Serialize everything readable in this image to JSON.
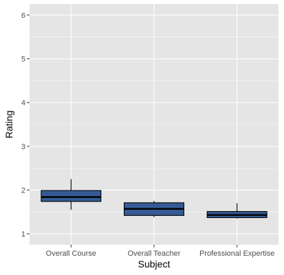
{
  "chart_data": {
    "type": "box",
    "xlabel": "Subject",
    "ylabel": "Rating",
    "ylim": [
      0.75,
      6.25
    ],
    "yticks": [
      1,
      2,
      3,
      4,
      5,
      6
    ],
    "grid": true,
    "categories": [
      "Overall Course",
      "Overall Teacher",
      "Professional Expertise"
    ],
    "boxes": [
      {
        "category": "Overall Course",
        "whisker_low": 1.55,
        "q1": 1.74,
        "median": 1.84,
        "q3": 1.99,
        "whisker_high": 2.25
      },
      {
        "category": "Overall Teacher",
        "whisker_low": 1.38,
        "q1": 1.42,
        "median": 1.57,
        "q3": 1.71,
        "whisker_high": 1.75
      },
      {
        "category": "Professional Expertise",
        "whisker_low": 1.35,
        "q1": 1.37,
        "median": 1.43,
        "q3": 1.51,
        "whisker_high": 1.7
      }
    ],
    "colors": {
      "panel": "#e5e5e5",
      "grid": "#ffffff",
      "box_fill": "#355a96",
      "box_stroke": "#000000"
    }
  }
}
